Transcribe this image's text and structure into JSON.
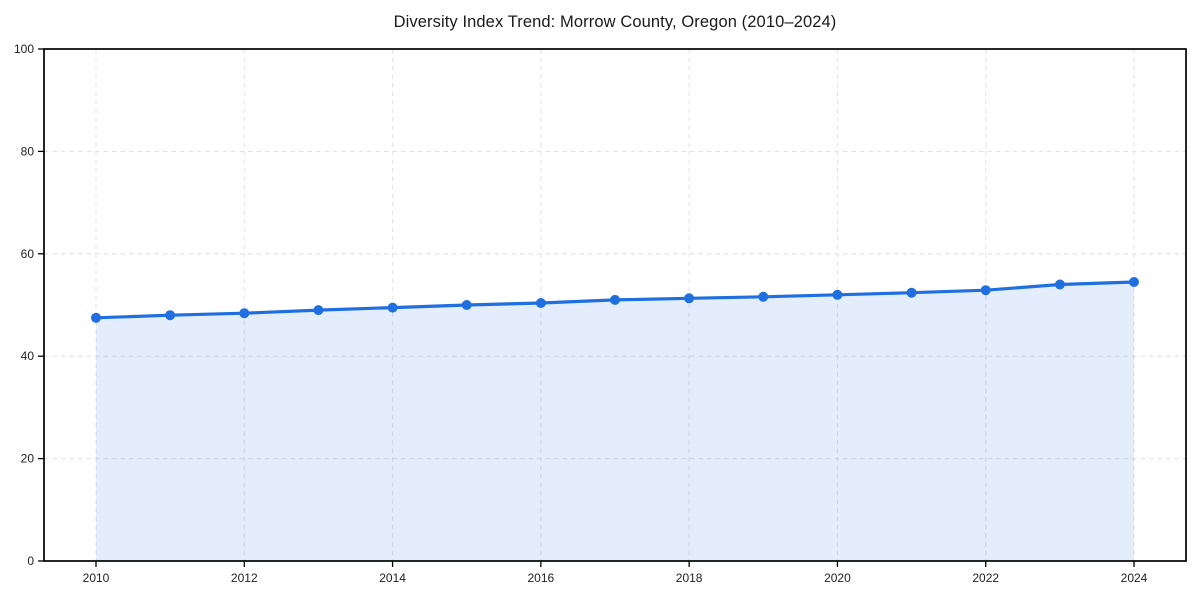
{
  "title": "Diversity Index Trend: Morrow County, Oregon (2010–2024)",
  "chart_data": {
    "type": "line",
    "title": "Diversity Index Trend: Morrow County, Oregon (2010–2024)",
    "x": [
      2010,
      2011,
      2012,
      2013,
      2014,
      2015,
      2016,
      2017,
      2018,
      2019,
      2020,
      2021,
      2022,
      2023,
      2024
    ],
    "series": [
      {
        "name": "Diversity Index",
        "values": [
          47.5,
          48.0,
          48.4,
          49.0,
          49.5,
          50.0,
          50.4,
          51.0,
          51.3,
          51.6,
          52.0,
          52.4,
          52.9,
          54.0,
          54.5
        ]
      }
    ],
    "xlabel": "",
    "ylabel": "",
    "xticks": [
      2010,
      2012,
      2014,
      2016,
      2018,
      2020,
      2022,
      2024
    ],
    "yticks": [
      0,
      20,
      40,
      60,
      80,
      100
    ],
    "ylim": [
      0,
      100
    ],
    "grid": true,
    "grid_style": "dashed",
    "legend": "none",
    "area_fill": true,
    "colors": {
      "line": "#1f6fe0",
      "marker": "#1f6fe0",
      "fill": "rgba(31, 110, 229, 0.12)",
      "grid": "#e4e4e4",
      "spine": "#000000",
      "tick_label": "#222222",
      "title": "#1a1a1a",
      "background": "#ffffff"
    }
  }
}
